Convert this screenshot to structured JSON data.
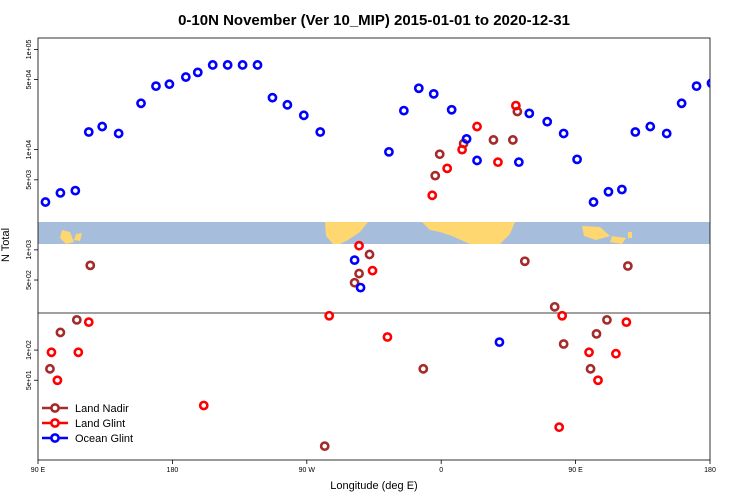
{
  "chart_data": {
    "type": "scatter",
    "title": "0-10N November (Ver 10_MIP)   2015-01-01 to 2020-12-31",
    "xlabel": "Longitude (deg E)",
    "ylabel": "N Total",
    "x_ticks": [
      "90 E",
      "180",
      "90 W",
      "0",
      "90 E",
      "180"
    ],
    "x_tick_values": [
      90,
      180,
      270,
      360,
      450,
      540
    ],
    "xlim": [
      90,
      540
    ],
    "y_scale": "log",
    "y_ticks": [
      "1e+05",
      "5e+04",
      "1e+04",
      "5e+03",
      "1e+03",
      "5e+02",
      "1e+02",
      "5e+01"
    ],
    "y_tick_values": [
      100000,
      50000,
      10000,
      5000,
      1000,
      500,
      100,
      50
    ],
    "ylim": [
      8,
      130000
    ],
    "y_break": [
      170,
      380
    ],
    "map_band": {
      "land_color": "#ffd770",
      "ocean_color": "#a6bddb"
    },
    "legend_position": "bottom-left",
    "series": [
      {
        "name": "Land Nadir",
        "color": "#a52a2a",
        "points": [
          [
            98,
            65
          ],
          [
            105,
            150
          ],
          [
            116,
            200
          ],
          [
            125,
            700
          ],
          [
            282,
            11
          ],
          [
            302,
            470
          ],
          [
            305,
            580
          ],
          [
            312,
            900
          ],
          [
            348,
            65
          ],
          [
            356,
            5500
          ],
          [
            359,
            9000
          ],
          [
            375,
            11500
          ],
          [
            395,
            12500
          ],
          [
            408,
            12500
          ],
          [
            411,
            24000
          ],
          [
            416,
            770
          ],
          [
            436,
            270
          ],
          [
            442,
            115
          ],
          [
            460,
            65
          ],
          [
            464,
            145
          ],
          [
            471,
            200
          ],
          [
            485,
            690
          ]
        ]
      },
      {
        "name": "Land Glint",
        "color": "#ff0000",
        "points": [
          [
            99,
            95
          ],
          [
            103,
            50
          ],
          [
            124,
            190
          ],
          [
            117,
            95
          ],
          [
            201,
            28
          ],
          [
            285,
            220
          ],
          [
            305,
            1100
          ],
          [
            314,
            620
          ],
          [
            324,
            135
          ],
          [
            354,
            3500
          ],
          [
            364,
            6500
          ],
          [
            374,
            10000
          ],
          [
            384,
            17000
          ],
          [
            398,
            7500
          ],
          [
            410,
            27500
          ],
          [
            441,
            220
          ],
          [
            439,
            17
          ],
          [
            459,
            95
          ],
          [
            465,
            50
          ],
          [
            477,
            92
          ],
          [
            484,
            190
          ]
        ]
      },
      {
        "name": "Ocean Glint",
        "color": "#0000ff",
        "points": [
          [
            95,
            3000
          ],
          [
            105,
            3700
          ],
          [
            115,
            3900
          ],
          [
            124,
            15000
          ],
          [
            133,
            17000
          ],
          [
            144,
            14500
          ],
          [
            159,
            29000
          ],
          [
            169,
            43000
          ],
          [
            178,
            45000
          ],
          [
            189,
            53000
          ],
          [
            197,
            59000
          ],
          [
            207,
            70000
          ],
          [
            217,
            70000
          ],
          [
            227,
            70000
          ],
          [
            237,
            70000
          ],
          [
            247,
            33000
          ],
          [
            257,
            28000
          ],
          [
            268,
            22000
          ],
          [
            279,
            15000
          ],
          [
            302,
            790
          ],
          [
            306,
            420
          ],
          [
            325,
            9500
          ],
          [
            335,
            24500
          ],
          [
            345,
            41000
          ],
          [
            355,
            36000
          ],
          [
            367,
            25000
          ],
          [
            377,
            12800
          ],
          [
            384,
            7800
          ],
          [
            399,
            120
          ],
          [
            412,
            7500
          ],
          [
            419,
            23000
          ],
          [
            431,
            19000
          ],
          [
            442,
            14500
          ],
          [
            451,
            8000
          ],
          [
            462,
            3000
          ],
          [
            472,
            3800
          ],
          [
            481,
            4000
          ],
          [
            490,
            15000
          ],
          [
            500,
            17000
          ],
          [
            511,
            14500
          ],
          [
            521,
            29000
          ],
          [
            531,
            43000
          ],
          [
            541,
            46000
          ]
        ]
      }
    ]
  }
}
